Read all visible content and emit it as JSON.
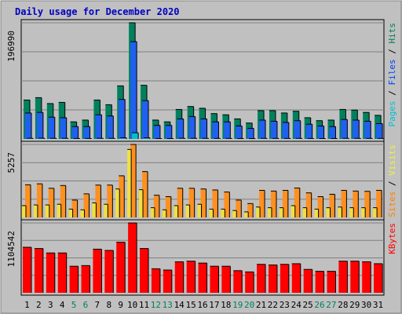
{
  "chart_data": {
    "type": "bar",
    "title": "Daily usage for December 2020",
    "days": [
      "1",
      "2",
      "3",
      "4",
      "5",
      "6",
      "7",
      "8",
      "9",
      "10",
      "11",
      "12",
      "13",
      "14",
      "15",
      "16",
      "17",
      "18",
      "19",
      "20",
      "21",
      "22",
      "23",
      "24",
      "25",
      "26",
      "27",
      "28",
      "29",
      "30",
      "31"
    ],
    "weekend_days": [
      "5",
      "6",
      "12",
      "13",
      "19",
      "20",
      "26",
      "27"
    ],
    "panels": [
      {
        "name": "hits-files-pages",
        "max_label": "196990",
        "max": 196990,
        "legend": [
          {
            "text": "Pages",
            "color": "#00c0d0"
          },
          {
            "text": " / ",
            "color": "#000000"
          },
          {
            "text": "Files",
            "color": "#0040ff"
          },
          {
            "text": " / ",
            "color": "#000000"
          },
          {
            "text": "Hits",
            "color": "#00805c"
          }
        ],
        "series": [
          {
            "name": "Hits",
            "color": "#00805c",
            "values": [
              66000,
              70000,
              60000,
              62000,
              29000,
              32000,
              66000,
              58000,
              90000,
              196990,
              91000,
              32000,
              29000,
              50000,
              55000,
              52000,
              43000,
              41000,
              34000,
              27000,
              48000,
              48000,
              44000,
              47000,
              36000,
              31000,
              32000,
              50000,
              49000,
              45000,
              40000
            ]
          },
          {
            "name": "Files",
            "color": "#2060f0",
            "values": [
              44000,
              45000,
              37000,
              36000,
              21000,
              21000,
              41000,
              39000,
              67000,
              165000,
              65000,
              23000,
              23000,
              34000,
              38000,
              34000,
              29000,
              29000,
              22000,
              18000,
              32000,
              30000,
              28000,
              31000,
              25000,
              22000,
              21000,
              33000,
              32000,
              30000,
              26000
            ]
          },
          {
            "name": "Pages",
            "color": "#00c0d0",
            "values": [
              1100,
              1300,
              1100,
              1100,
              800,
              800,
              1100,
              1100,
              1800,
              10500,
              1800,
              700,
              700,
              1100,
              1100,
              1000,
              900,
              900,
              700,
              600,
              1000,
              900,
              900,
              1000,
              800,
              700,
              700,
              1100,
              1000,
              900,
              900
            ]
          }
        ]
      },
      {
        "name": "visits-sites",
        "max_label": "5257",
        "max": 5257,
        "legend": [
          {
            "text": "Sites",
            "color": "#ff8000"
          },
          {
            "text": " / ",
            "color": "#000000"
          },
          {
            "text": "Visits",
            "color": "#f0f040"
          }
        ],
        "series": [
          {
            "name": "Visits",
            "color": "#ff9020",
            "values": [
              2350,
              2420,
              2100,
              2300,
              1250,
              1700,
              2330,
              2330,
              3000,
              5257,
              3300,
              1600,
              1500,
              2100,
              2100,
              2050,
              1980,
              1830,
              1250,
              1000,
              1950,
              1900,
              1950,
              2120,
              1770,
              1500,
              1670,
              1950,
              1900,
              1880,
              1950
            ]
          },
          {
            "name": "Sites",
            "color": "#f0e040",
            "values": [
              850,
              900,
              900,
              950,
              600,
              550,
              1050,
              950,
              2050,
              4900,
              2000,
              700,
              550,
              850,
              900,
              950,
              600,
              600,
              500,
              400,
              750,
              700,
              700,
              850,
              700,
              600,
              700,
              750,
              700,
              700,
              700
            ]
          }
        ]
      },
      {
        "name": "kbytes",
        "max_label": "1104542",
        "max": 1104542,
        "legend": [
          {
            "text": "KBytes",
            "color": "#ff0000"
          }
        ],
        "series": [
          {
            "name": "KBytes",
            "color": "#ff0000",
            "values": [
              720000,
              700000,
              630000,
              630000,
              420000,
              430000,
              690000,
              670000,
              800000,
              1104542,
              700000,
              380000,
              360000,
              490000,
              500000,
              470000,
              420000,
              420000,
              350000,
              330000,
              450000,
              440000,
              450000,
              460000,
              370000,
              340000,
              340000,
              500000,
              500000,
              490000,
              460000
            ]
          }
        ]
      }
    ]
  }
}
